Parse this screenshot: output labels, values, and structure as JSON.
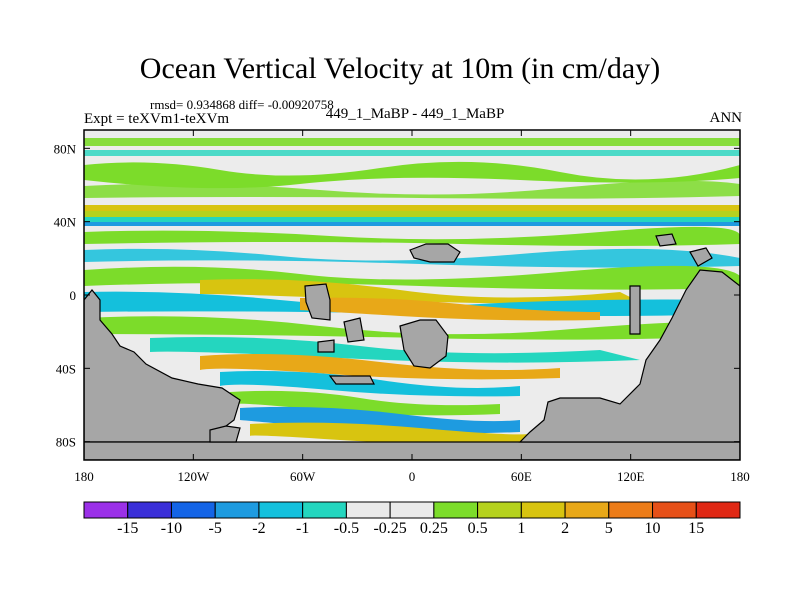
{
  "header": {
    "title": "Ocean Vertical Velocity at 10m (in cm/day)",
    "stats": "rmsd= 0.934868 diff= -0.00920758",
    "expt": "Expt = teXVm1-teXVm",
    "subtitle": "449_1_MaBP - 449_1_MaBP",
    "season": "ANN"
  },
  "chart_data": {
    "type": "heatmap",
    "title": "Ocean Vertical Velocity at 10m (in cm/day)",
    "x_range": [
      -180,
      180
    ],
    "y_range": [
      -90,
      90
    ],
    "x_ticks": [
      {
        "value": -180,
        "label": "180"
      },
      {
        "value": -120,
        "label": "120W"
      },
      {
        "value": -60,
        "label": "60W"
      },
      {
        "value": 0,
        "label": "0"
      },
      {
        "value": 60,
        "label": "60E"
      },
      {
        "value": 120,
        "label": "120E"
      },
      {
        "value": 180,
        "label": "180"
      }
    ],
    "y_ticks": [
      {
        "value": 80,
        "label": "80N"
      },
      {
        "value": 40,
        "label": "40N"
      },
      {
        "value": 0,
        "label": "0"
      },
      {
        "value": -40,
        "label": "40S"
      },
      {
        "value": -80,
        "label": "80S"
      }
    ],
    "colorbar": {
      "levels": [
        "-15",
        "-10",
        "-5",
        "-2",
        "-1",
        "-0.5",
        "-0.25",
        "0.25",
        "0.5",
        "1",
        "2",
        "5",
        "10",
        "15"
      ],
      "colors": [
        "#9b30e8",
        "#3a2fd8",
        "#1464e6",
        "#1e9be0",
        "#14c0dc",
        "#24d6bf",
        "#eaeaea",
        "#eaeaea",
        "#7cdc2a",
        "#b5d21e",
        "#d8c410",
        "#e8a818",
        "#ec7c18",
        "#e65018",
        "#e02814"
      ]
    }
  }
}
